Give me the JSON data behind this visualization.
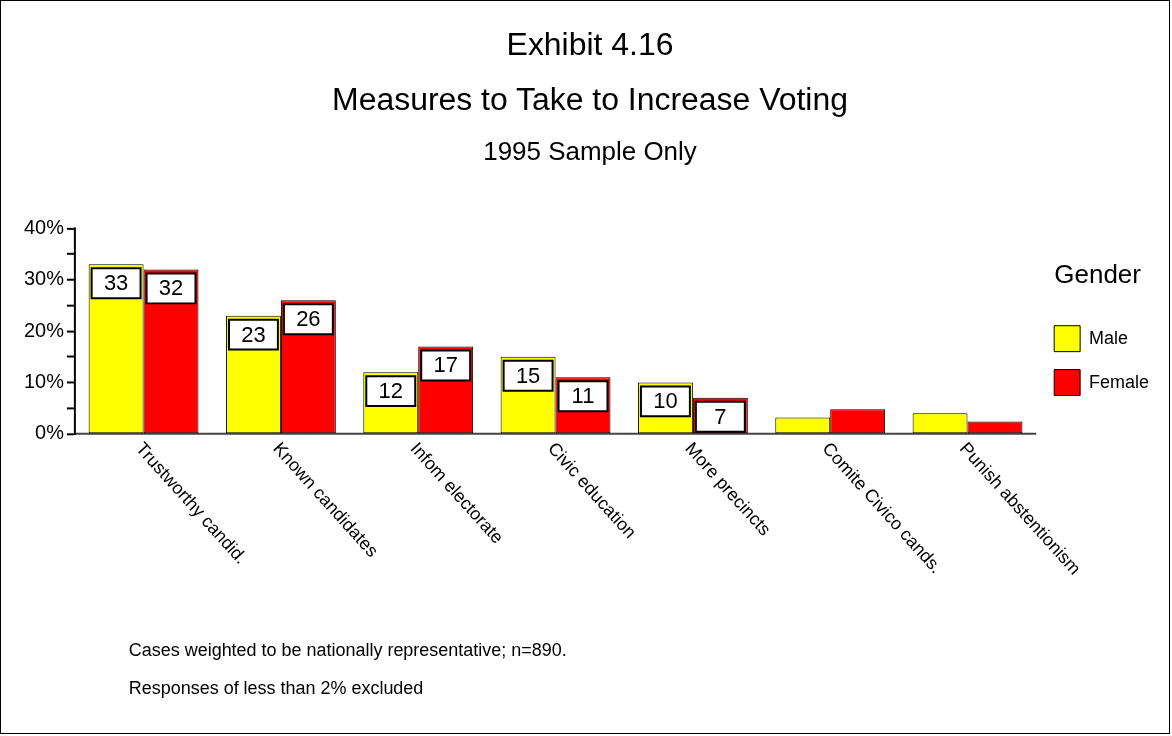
{
  "chart_data": {
    "type": "bar",
    "title": "Exhibit 4.16",
    "subtitle": "Measures to Take to Increase Voting",
    "annotations": [
      "1995 Sample Only",
      "Cases weighted to be nationally representative; n=890.",
      "Responses of less than 2% excluded"
    ],
    "categories": [
      "Trustworthy candid.",
      "Known candidates",
      "Infom electorate",
      "Civic education",
      "More precincts",
      "Comite Civico cands.",
      "Punish abstentionism"
    ],
    "series": [
      {
        "name": "Male",
        "color": "#ffff00",
        "values": [
          33,
          23,
          12,
          15,
          10,
          3.2,
          4.0
        ],
        "value_labels": [
          "33",
          "23",
          "12",
          "15",
          "10",
          null,
          null
        ]
      },
      {
        "name": "Female",
        "color": "#ff0000",
        "values": [
          32,
          26,
          17,
          11,
          7,
          4.8,
          2.4
        ],
        "value_labels": [
          "32",
          "26",
          "17",
          "11",
          "7",
          null,
          null
        ]
      }
    ],
    "legend_title": "Gender",
    "legend": "right",
    "ylim": [
      0,
      40
    ],
    "yticks": [
      {
        "value": 0,
        "label": "0%"
      },
      {
        "value": 5,
        "label": null
      },
      {
        "value": 10,
        "label": "10%"
      },
      {
        "value": 15,
        "label": null
      },
      {
        "value": 20,
        "label": "20%"
      },
      {
        "value": 25,
        "label": null
      },
      {
        "value": 30,
        "label": "30%"
      },
      {
        "value": 35,
        "label": null
      },
      {
        "value": 40,
        "label": "40%"
      }
    ],
    "grid": false
  }
}
